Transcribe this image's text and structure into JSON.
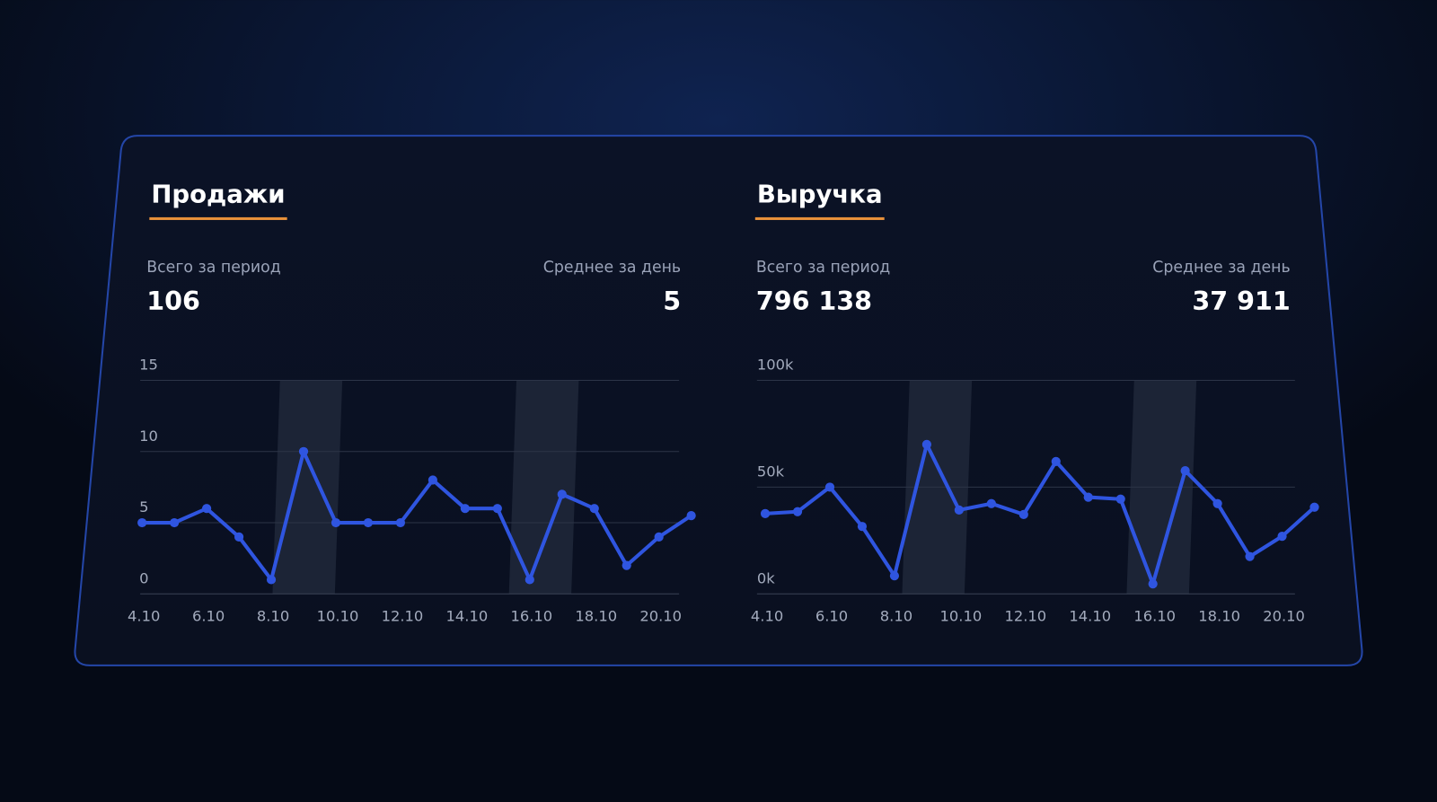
{
  "chart_data": [
    {
      "type": "line",
      "title": "Продажи",
      "total_label": "Всего за период",
      "total": "106",
      "avg_label": "Среднее за день",
      "avg": "5",
      "categories": [
        "4.10",
        null,
        "6.10",
        null,
        "8.10",
        null,
        "10.10",
        null,
        "12.10",
        null,
        "14.10",
        null,
        "16.10",
        null,
        "18.10",
        null,
        "20.10",
        null
      ],
      "series": [
        {
          "color": "#2f55e0",
          "values": [
            5,
            5,
            6,
            4,
            1,
            10,
            5,
            5,
            5,
            8,
            6,
            6,
            1,
            7,
            6,
            2,
            4,
            5.5
          ]
        }
      ],
      "ylim": [
        0,
        15
      ],
      "yticks": [
        0,
        5,
        10,
        15
      ],
      "grid": true
    },
    {
      "type": "line",
      "title": "Выручка",
      "total_label": "Всего за период",
      "total": "796 138",
      "avg_label": "Среднее за день",
      "avg": "37 911",
      "categories": [
        "4.10",
        null,
        "6.10",
        null,
        "8.10",
        null,
        "10.10",
        null,
        "12.10",
        null,
        "14.10",
        null,
        "16.10",
        null,
        "18.10",
        null,
        "20.10",
        null
      ],
      "series": [
        {
          "color": "#2f55e0",
          "values": [
            37600,
            38500,
            50000,
            31600,
            8500,
            70000,
            39300,
            42300,
            37200,
            62000,
            45300,
            44400,
            4700,
            57700,
            42300,
            17500,
            27000,
            40600
          ]
        }
      ],
      "ylim": [
        0,
        100000
      ],
      "yticks": [
        {
          "value": 0,
          "label": "0k"
        },
        {
          "value": 50000,
          "label": "50k"
        },
        {
          "value": 100000,
          "label": "100k"
        }
      ],
      "grid": true
    }
  ]
}
